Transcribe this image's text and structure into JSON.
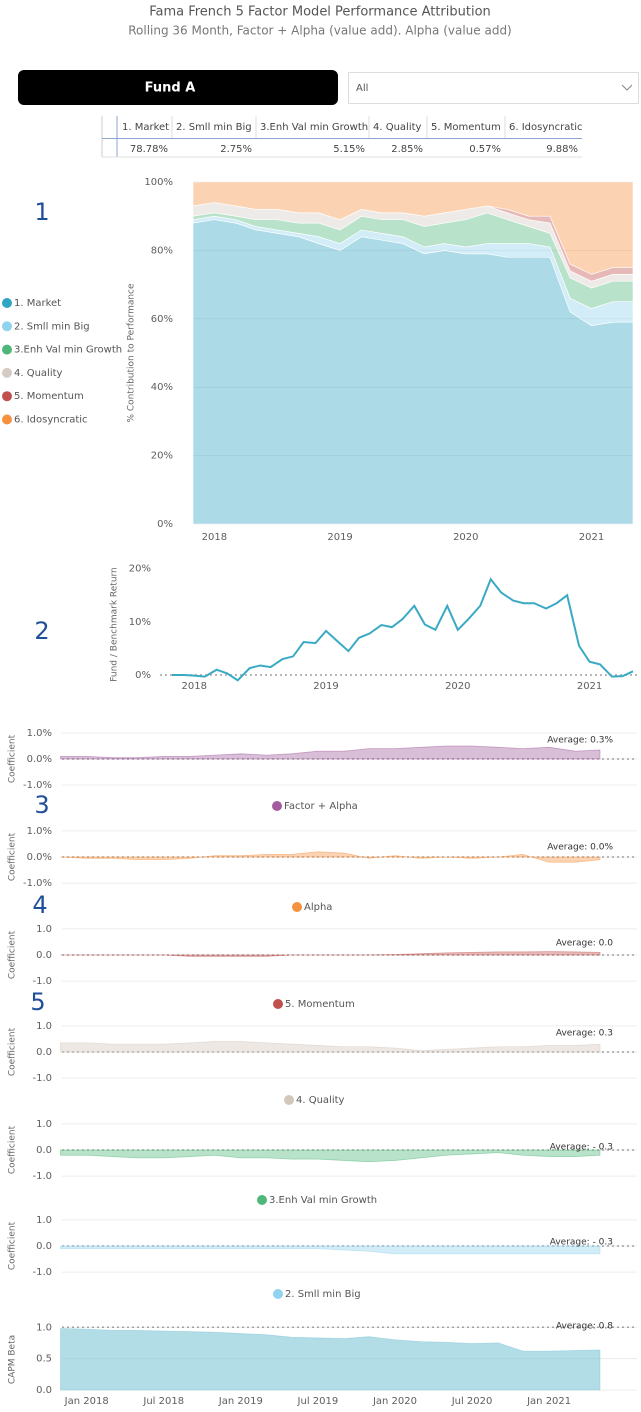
{
  "header": {
    "title": "Fama French 5 Factor Model Performance Attribution",
    "subtitle": "Rolling 36 Month, Factor + Alpha (value add). Alpha (value add)"
  },
  "filters": {
    "fund": "Fund A",
    "dropdown": "All"
  },
  "table": {
    "columns": [
      "1. Market",
      "2. Smll min Big",
      "3.Enh Val min Growth",
      "4. Quality",
      "5. Momentum",
      "6. Idosyncratic"
    ],
    "rows": [
      [
        "78.78%",
        "2.75%",
        "5.15%",
        "2.85%",
        "0.57%",
        "9.88%"
      ]
    ]
  },
  "section_numbers": [
    "1",
    "2",
    "3",
    "4",
    "5"
  ],
  "chart_data": [
    {
      "type": "stacked_area",
      "y_label": "% Contribution to Performance",
      "legend": "left",
      "grid": true,
      "x": [
        2017.83,
        2018,
        2018.17,
        2018.33,
        2018.5,
        2018.67,
        2018.83,
        2019,
        2019.17,
        2019.33,
        2019.5,
        2019.67,
        2019.83,
        2020,
        2020.17,
        2020.33,
        2020.5,
        2020.67,
        2020.83,
        2021,
        2021.17,
        2021.33
      ],
      "xlim": [
        2017.83,
        2021.33
      ],
      "xticks": [
        2018,
        2019,
        2020,
        2021
      ],
      "ylim": [
        0,
        100
      ],
      "yticks": [
        {
          "value": 0,
          "label": "0%"
        },
        {
          "value": 20,
          "label": "20%"
        },
        {
          "value": 40,
          "label": "40%"
        },
        {
          "value": 60,
          "label": "60%"
        },
        {
          "value": 80,
          "label": "80%"
        },
        {
          "value": 100,
          "label": "100%"
        }
      ],
      "series": [
        {
          "name": "1. Market",
          "color": "#2fa6c2",
          "values": [
            88,
            89,
            88,
            86,
            85,
            84,
            82,
            80,
            84,
            83,
            82,
            79,
            80,
            79,
            79,
            78,
            78,
            78,
            62,
            58,
            59,
            59
          ]
        },
        {
          "name": "2. Smll min Big",
          "color": "#8fd3ee",
          "values": [
            1,
            1,
            1,
            1,
            1,
            1,
            2,
            2,
            2,
            2,
            2,
            2,
            2,
            2,
            3,
            4,
            4,
            3,
            4,
            5,
            6,
            6
          ]
        },
        {
          "name": "3.Enh Val min Growth",
          "color": "#4fb77a",
          "values": [
            1,
            1,
            1,
            2,
            3,
            3,
            4,
            4,
            4,
            4,
            5,
            6,
            6,
            8,
            9,
            7,
            5,
            4,
            6,
            6,
            6,
            6
          ]
        },
        {
          "name": "4. Quality",
          "color": "#d3cbc4",
          "values": [
            3,
            3,
            3,
            3,
            3,
            3,
            3,
            3,
            2,
            2,
            2,
            3,
            3,
            3,
            2,
            2,
            2,
            3,
            2,
            2,
            2,
            2
          ]
        },
        {
          "name": "5. Momentum",
          "color": "#c0504d",
          "values": [
            0,
            0,
            0,
            0,
            0,
            0,
            0,
            0,
            0,
            0,
            0,
            0,
            0,
            0,
            0,
            1,
            1,
            2,
            2,
            2,
            2,
            2
          ]
        },
        {
          "name": "6. Idosyncratic",
          "color": "#f5923e",
          "values": [
            7,
            6,
            7,
            8,
            8,
            9,
            9,
            11,
            8,
            9,
            9,
            10,
            9,
            8,
            7,
            8,
            10,
            10,
            24,
            27,
            25,
            25
          ]
        }
      ]
    },
    {
      "type": "line",
      "y_label": "Fund / Benchmark Return",
      "reference_line": 0,
      "x": [
        2017.83,
        2017.92,
        2018,
        2018.08,
        2018.17,
        2018.25,
        2018.33,
        2018.42,
        2018.5,
        2018.58,
        2018.67,
        2018.75,
        2018.83,
        2018.92,
        2019,
        2019.08,
        2019.17,
        2019.25,
        2019.33,
        2019.42,
        2019.5,
        2019.58,
        2019.67,
        2019.75,
        2019.83,
        2019.92,
        2020,
        2020.08,
        2020.17,
        2020.25,
        2020.33,
        2020.42,
        2020.5,
        2020.58,
        2020.67,
        2020.75,
        2020.83,
        2020.92,
        2021,
        2021.08,
        2021.17,
        2021.25,
        2021.33
      ],
      "xlim": [
        2017.74,
        2021.36
      ],
      "xticks": [
        2018,
        2019,
        2020,
        2021
      ],
      "ylim": [
        -3,
        22
      ],
      "yticks": [
        {
          "value": 0,
          "label": "0%"
        },
        {
          "value": 10,
          "label": "10%"
        },
        {
          "value": 20,
          "label": "20%"
        }
      ],
      "series": [
        {
          "color": "#3aaac4",
          "values": [
            0,
            0,
            -0.1,
            -0.3,
            1,
            0.3,
            -1,
            1.3,
            1.8,
            1.5,
            3,
            3.5,
            6.2,
            6,
            8.3,
            6.5,
            4.5,
            7,
            7.8,
            9.4,
            9,
            10.5,
            13,
            9.5,
            8.5,
            13,
            8.5,
            10.5,
            13,
            18,
            15.5,
            14,
            13.5,
            13.5,
            12.5,
            13.5,
            15,
            5.5,
            2.5,
            2,
            -0.3,
            -0.2,
            0.7
          ]
        }
      ]
    },
    {
      "type": "area",
      "y_label": "Coefficient",
      "annotation": "Average: 0.3%",
      "reference_line": 0,
      "grid": true,
      "x": [
        2017.83,
        2018,
        2018.17,
        2018.33,
        2018.5,
        2018.67,
        2018.83,
        2019,
        2019.17,
        2019.33,
        2019.5,
        2019.67,
        2019.83,
        2020,
        2020.17,
        2020.33,
        2020.5,
        2020.67,
        2020.83,
        2021,
        2021.17,
        2021.33
      ],
      "xlim": [
        2017.84,
        2021.57
      ],
      "ylim": [
        -1.3,
        1.3
      ],
      "yticks": [
        {
          "value": 1,
          "label": "1.0%"
        },
        {
          "value": 0,
          "label": "0.0%"
        },
        {
          "value": -1,
          "label": "-1.0%"
        }
      ],
      "series": [
        {
          "name": "Factor + Alpha",
          "color": "#a05c9e",
          "values": [
            0.1,
            0.1,
            0.05,
            0.05,
            0.1,
            0.1,
            0.15,
            0.2,
            0.15,
            0.2,
            0.3,
            0.3,
            0.4,
            0.4,
            0.45,
            0.5,
            0.5,
            0.45,
            0.4,
            0.45,
            0.3,
            0.35
          ]
        }
      ]
    },
    {
      "type": "area",
      "y_label": "Coefficient",
      "annotation": "Average: 0.0%",
      "reference_line": 0,
      "grid": true,
      "x": [
        2017.83,
        2018,
        2018.17,
        2018.33,
        2018.5,
        2018.67,
        2018.83,
        2019,
        2019.17,
        2019.33,
        2019.5,
        2019.67,
        2019.83,
        2020,
        2020.17,
        2020.33,
        2020.5,
        2020.67,
        2020.83,
        2021,
        2021.17,
        2021.33
      ],
      "xlim": [
        2017.84,
        2021.57
      ],
      "ylim": [
        -1.3,
        1.3
      ],
      "yticks": [
        {
          "value": 1,
          "label": "1.0%"
        },
        {
          "value": 0,
          "label": "0.0%"
        },
        {
          "value": -1,
          "label": "-1.0%"
        }
      ],
      "series": [
        {
          "name": "Alpha",
          "color": "#f5923e",
          "values": [
            0,
            -0.05,
            -0.05,
            -0.1,
            -0.1,
            -0.05,
            0.05,
            0.05,
            0.1,
            0.1,
            0.2,
            0.15,
            -0.05,
            0.05,
            -0.05,
            0,
            -0.05,
            0,
            0.1,
            -0.2,
            -0.2,
            -0.1
          ]
        }
      ]
    },
    {
      "type": "area",
      "y_label": "Coefficient",
      "annotation": "Average: 0.0",
      "reference_line": 0,
      "grid": true,
      "x": [
        2017.83,
        2018,
        2018.17,
        2018.33,
        2018.5,
        2018.67,
        2018.83,
        2019,
        2019.17,
        2019.33,
        2019.5,
        2019.67,
        2019.83,
        2020,
        2020.17,
        2020.33,
        2020.5,
        2020.67,
        2020.83,
        2021,
        2021.17,
        2021.33
      ],
      "xlim": [
        2017.84,
        2021.57
      ],
      "ylim": [
        -1.3,
        1.3
      ],
      "yticks": [
        {
          "value": 1,
          "label": "1.0"
        },
        {
          "value": 0,
          "label": "0.0"
        },
        {
          "value": -1,
          "label": "-1.0"
        }
      ],
      "series": [
        {
          "name": "5. Momentum",
          "color": "#c0504d",
          "values": [
            0,
            0,
            0,
            0,
            0,
            -0.05,
            -0.05,
            -0.05,
            -0.05,
            0,
            0,
            0,
            0,
            0.02,
            0.05,
            0.08,
            0.1,
            0.12,
            0.12,
            0.13,
            0.12,
            0.1
          ]
        }
      ]
    },
    {
      "type": "area",
      "y_label": "Coefficient",
      "annotation": "Average: 0.3",
      "reference_line": 0,
      "grid": true,
      "x": [
        2017.83,
        2018,
        2018.17,
        2018.33,
        2018.5,
        2018.67,
        2018.83,
        2019,
        2019.17,
        2019.33,
        2019.5,
        2019.67,
        2019.83,
        2020,
        2020.17,
        2020.33,
        2020.5,
        2020.67,
        2020.83,
        2021,
        2021.17,
        2021.33
      ],
      "xlim": [
        2017.84,
        2021.57
      ],
      "ylim": [
        -1.3,
        1.3
      ],
      "yticks": [
        {
          "value": 1,
          "label": "1.0"
        },
        {
          "value": 0,
          "label": "0.0"
        },
        {
          "value": -1,
          "label": "-1.0"
        }
      ],
      "series": [
        {
          "name": "4. Quality",
          "color": "#d3c6bb",
          "values": [
            0.35,
            0.35,
            0.3,
            0.3,
            0.3,
            0.35,
            0.4,
            0.4,
            0.35,
            0.3,
            0.25,
            0.2,
            0.2,
            0.15,
            0.05,
            0.1,
            0.15,
            0.2,
            0.2,
            0.25,
            0.25,
            0.3
          ]
        }
      ]
    },
    {
      "type": "area",
      "y_label": "Coefficient",
      "annotation": "Average: - 0.3",
      "reference_line": 0,
      "grid": true,
      "x": [
        2017.83,
        2018,
        2018.17,
        2018.33,
        2018.5,
        2018.67,
        2018.83,
        2019,
        2019.17,
        2019.33,
        2019.5,
        2019.67,
        2019.83,
        2020,
        2020.17,
        2020.33,
        2020.5,
        2020.67,
        2020.83,
        2021,
        2021.17,
        2021.33
      ],
      "xlim": [
        2017.84,
        2021.57
      ],
      "ylim": [
        -1.3,
        1.3
      ],
      "yticks": [
        {
          "value": 1,
          "label": "1.0"
        },
        {
          "value": 0,
          "label": "0.0"
        },
        {
          "value": -1,
          "label": "-1.0"
        }
      ],
      "series": [
        {
          "name": "3.Enh Val min Growth",
          "color": "#4fb77a",
          "values": [
            -0.2,
            -0.2,
            -0.25,
            -0.3,
            -0.3,
            -0.25,
            -0.2,
            -0.3,
            -0.3,
            -0.35,
            -0.35,
            -0.4,
            -0.45,
            -0.4,
            -0.3,
            -0.2,
            -0.15,
            -0.1,
            -0.2,
            -0.25,
            -0.25,
            -0.2
          ]
        }
      ]
    },
    {
      "type": "area",
      "y_label": "Coefficient",
      "annotation": "Average: - 0.3",
      "reference_line": 0,
      "grid": true,
      "x": [
        2017.83,
        2018,
        2018.17,
        2018.33,
        2018.5,
        2018.67,
        2018.83,
        2019,
        2019.17,
        2019.33,
        2019.5,
        2019.67,
        2019.83,
        2020,
        2020.17,
        2020.33,
        2020.5,
        2020.67,
        2020.83,
        2021,
        2021.17,
        2021.33
      ],
      "xlim": [
        2017.84,
        2021.57
      ],
      "ylim": [
        -1.3,
        1.3
      ],
      "yticks": [
        {
          "value": 1,
          "label": "1.0"
        },
        {
          "value": 0,
          "label": "0.0"
        },
        {
          "value": -1,
          "label": "-1.0"
        }
      ],
      "series": [
        {
          "name": "2. Smll min Big",
          "color": "#8fd3ee",
          "values": [
            -0.1,
            -0.1,
            -0.1,
            -0.1,
            -0.1,
            -0.1,
            -0.1,
            -0.1,
            -0.1,
            -0.1,
            -0.1,
            -0.15,
            -0.2,
            -0.3,
            -0.3,
            -0.3,
            -0.3,
            -0.3,
            -0.3,
            -0.3,
            -0.3,
            -0.3
          ]
        }
      ]
    },
    {
      "type": "area",
      "y_label": "CAPM Beta",
      "annotation": "Average: 0.8",
      "reference_line": 1,
      "grid": true,
      "x": [
        2017.83,
        2018,
        2018.17,
        2018.33,
        2018.5,
        2018.67,
        2018.83,
        2019,
        2019.17,
        2019.33,
        2019.5,
        2019.67,
        2019.83,
        2020,
        2020.17,
        2020.33,
        2020.5,
        2020.67,
        2020.83,
        2021,
        2021.17,
        2021.33
      ],
      "xlim": [
        2017.84,
        2021.57
      ],
      "ylim": [
        0,
        1.1
      ],
      "xticks": [
        {
          "value": 2018,
          "label": "Jan 2018"
        },
        {
          "value": 2018.5,
          "label": "Jul 2018"
        },
        {
          "value": 2019,
          "label": "Jan 2019"
        },
        {
          "value": 2019.5,
          "label": "Jul 2019"
        },
        {
          "value": 2020,
          "label": "Jan 2020"
        },
        {
          "value": 2020.5,
          "label": "Jul 2020"
        },
        {
          "value": 2021,
          "label": "Jan 2021"
        }
      ],
      "yticks": [
        {
          "value": 1,
          "label": "1.0"
        },
        0.5,
        {
          "value": 0,
          "label": "0.0"
        }
      ],
      "series": [
        {
          "color": "#7fc6d6",
          "values": [
            0.98,
            0.97,
            0.95,
            0.95,
            0.94,
            0.93,
            0.92,
            0.9,
            0.88,
            0.84,
            0.83,
            0.82,
            0.85,
            0.8,
            0.77,
            0.76,
            0.74,
            0.75,
            0.62,
            0.62,
            0.63,
            0.64
          ]
        }
      ]
    }
  ]
}
